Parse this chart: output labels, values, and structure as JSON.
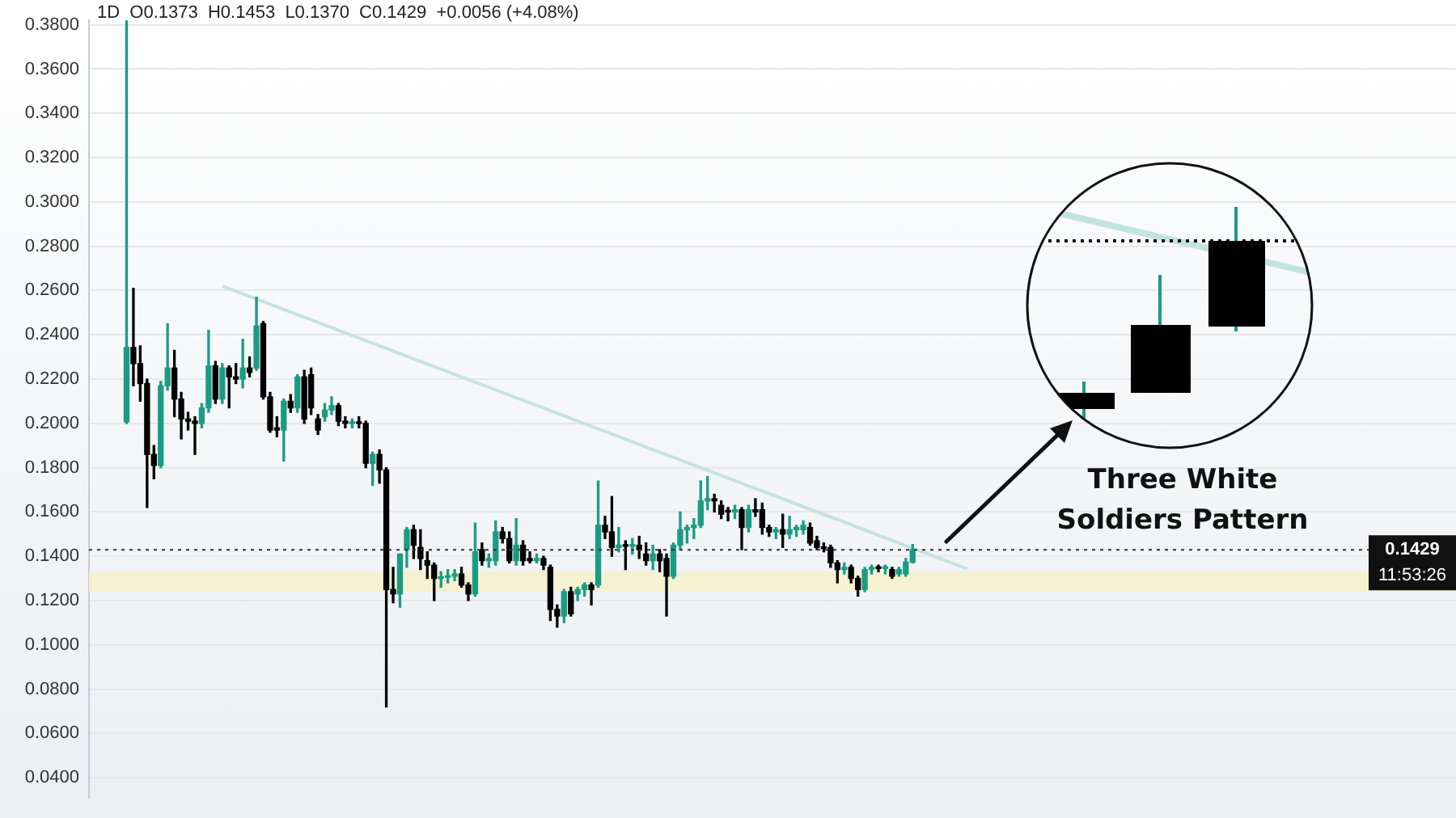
{
  "chart_data": {
    "type": "candlestick",
    "title": "1D  O0.1373  H0.1453  L0.1370  C0.1429  +0.0056 (+4.08%)",
    "categories": [
      null,
      null,
      null,
      null,
      null,
      null,
      null,
      null,
      null,
      null,
      null,
      null,
      null,
      null,
      null,
      null,
      null,
      null,
      null,
      null,
      null,
      null,
      null,
      null,
      null,
      null,
      null,
      null,
      null,
      null,
      null,
      null,
      null,
      null,
      null,
      null,
      null,
      null,
      null,
      null,
      null,
      null,
      null,
      null,
      null,
      null,
      null,
      null,
      null,
      null,
      null,
      null,
      null,
      null,
      null,
      null,
      null,
      null,
      null,
      null,
      null,
      null,
      null,
      null,
      null,
      null,
      null,
      null,
      null,
      null,
      null,
      null,
      null,
      null,
      null,
      null,
      null,
      null,
      null,
      null,
      null,
      null,
      null,
      null,
      null,
      null,
      null,
      null,
      null,
      null,
      null,
      null,
      null,
      null,
      null,
      null,
      null,
      null,
      null,
      null,
      null,
      null,
      null,
      null,
      null,
      null,
      null,
      null,
      null,
      null,
      null,
      null,
      null,
      null,
      null,
      null,
      null,
      null,
      null,
      null,
      null,
      null,
      null,
      null,
      null,
      null,
      null,
      null,
      null,
      null,
      null,
      null,
      null,
      null,
      null,
      null,
      null,
      null,
      null,
      null,
      null,
      null,
      null,
      null,
      null,
      null,
      null,
      null,
      null,
      null,
      null,
      null,
      null,
      null,
      null,
      null,
      null,
      null,
      null,
      null,
      null,
      null,
      null,
      null,
      null,
      null,
      null,
      null,
      null,
      null,
      null,
      null,
      null,
      null,
      null,
      null,
      null,
      null,
      null,
      null,
      null,
      null,
      null,
      null,
      null,
      null,
      null,
      null,
      null,
      null,
      null,
      null,
      null,
      null,
      null,
      null,
      null,
      null,
      null,
      null
    ],
    "ohlc": [
      null,
      null,
      null,
      null,
      null,
      [
        0.2007,
        0.382,
        0.2,
        0.2343
      ],
      [
        0.2343,
        0.261,
        0.217,
        0.227
      ],
      [
        0.227,
        0.235,
        0.21,
        0.218
      ],
      [
        0.218,
        0.22,
        0.162,
        0.186
      ],
      [
        0.186,
        0.19,
        0.175,
        0.181
      ],
      [
        0.181,
        0.219,
        0.18,
        0.217
      ],
      [
        0.217,
        0.245,
        0.215,
        0.225
      ],
      [
        0.225,
        0.233,
        0.203,
        0.211
      ],
      [
        0.211,
        0.214,
        0.193,
        0.202
      ],
      [
        0.202,
        0.205,
        0.197,
        0.201
      ],
      [
        0.201,
        0.203,
        0.186,
        0.2
      ],
      [
        0.2,
        0.209,
        0.198,
        0.207
      ],
      [
        0.207,
        0.242,
        0.205,
        0.226
      ],
      [
        0.226,
        0.228,
        0.209,
        0.211
      ],
      [
        0.211,
        0.227,
        0.209,
        0.225
      ],
      [
        0.225,
        0.226,
        0.207,
        0.221
      ],
      [
        0.221,
        0.227,
        0.218,
        0.22
      ],
      [
        0.22,
        0.238,
        0.216,
        0.225
      ],
      [
        0.225,
        0.23,
        0.221,
        0.223
      ],
      [
        0.225,
        0.257,
        0.224,
        0.244
      ],
      [
        0.245,
        0.246,
        0.211,
        0.212
      ],
      [
        0.212,
        0.214,
        0.196,
        0.197
      ],
      [
        0.198,
        0.203,
        0.194,
        0.197
      ],
      [
        0.197,
        0.211,
        0.183,
        0.21
      ],
      [
        0.21,
        0.213,
        0.205,
        0.207
      ],
      [
        0.207,
        0.222,
        0.205,
        0.221
      ],
      [
        0.221,
        0.224,
        0.2,
        0.202
      ],
      [
        0.222,
        0.225,
        0.204,
        0.207
      ],
      [
        0.202,
        0.204,
        0.195,
        0.197
      ],
      [
        0.203,
        0.209,
        0.201,
        0.206
      ],
      [
        0.206,
        0.212,
        0.204,
        0.208
      ],
      [
        0.208,
        0.209,
        0.199,
        0.201
      ],
      [
        0.201,
        0.203,
        0.198,
        0.2
      ],
      [
        0.2,
        0.202,
        0.198,
        0.2005
      ],
      [
        0.2005,
        0.203,
        0.198,
        0.2
      ],
      [
        0.2,
        0.201,
        0.18,
        0.182
      ],
      [
        0.182,
        0.187,
        0.172,
        0.186
      ],
      [
        0.186,
        0.188,
        0.173,
        0.179
      ],
      [
        0.179,
        0.18,
        0.072,
        0.125
      ],
      [
        0.125,
        0.135,
        0.119,
        0.123
      ],
      [
        0.123,
        0.141,
        0.117,
        0.141
      ],
      [
        0.143,
        0.153,
        0.135,
        0.152
      ],
      [
        0.152,
        0.154,
        0.139,
        0.145
      ],
      [
        0.144,
        0.152,
        0.134,
        0.139
      ],
      [
        0.138,
        0.142,
        0.13,
        0.136
      ],
      [
        0.136,
        0.137,
        0.12,
        0.13
      ],
      [
        0.13,
        0.133,
        0.126,
        0.1305
      ],
      [
        0.1305,
        0.134,
        0.128,
        0.131
      ],
      [
        0.131,
        0.134,
        0.129,
        0.132
      ],
      [
        0.132,
        0.135,
        0.126,
        0.127
      ],
      [
        0.127,
        0.128,
        0.12,
        0.123
      ],
      [
        0.123,
        0.155,
        0.122,
        0.142
      ],
      [
        0.143,
        0.146,
        0.136,
        0.138
      ],
      [
        0.138,
        0.141,
        0.135,
        0.139
      ],
      [
        0.138,
        0.156,
        0.136,
        0.151
      ],
      [
        0.151,
        0.153,
        0.146,
        0.148
      ],
      [
        0.148,
        0.151,
        0.137,
        0.138
      ],
      [
        0.138,
        0.157,
        0.136,
        0.145
      ],
      [
        0.145,
        0.147,
        0.136,
        0.138
      ],
      [
        0.139,
        0.142,
        0.137,
        0.138
      ],
      [
        0.138,
        0.141,
        0.137,
        0.139
      ],
      [
        0.139,
        0.14,
        0.134,
        0.136
      ],
      [
        0.135,
        0.136,
        0.111,
        0.116
      ],
      [
        0.116,
        0.118,
        0.108,
        0.113
      ],
      [
        0.113,
        0.125,
        0.11,
        0.124
      ],
      [
        0.124,
        0.126,
        0.113,
        0.114
      ],
      [
        0.123,
        0.126,
        0.12,
        0.125
      ],
      [
        0.125,
        0.128,
        0.122,
        0.127
      ],
      [
        0.127,
        0.128,
        0.118,
        0.125
      ],
      [
        0.127,
        0.174,
        0.126,
        0.154
      ],
      [
        0.154,
        0.158,
        0.148,
        0.151
      ],
      [
        0.151,
        0.167,
        0.14,
        0.144
      ],
      [
        0.144,
        0.153,
        0.142,
        0.145
      ],
      [
        0.145,
        0.147,
        0.134,
        0.1445
      ],
      [
        0.1445,
        0.148,
        0.141,
        0.145
      ],
      [
        0.145,
        0.149,
        0.139,
        0.143
      ],
      [
        0.141,
        0.146,
        0.136,
        0.138
      ],
      [
        0.138,
        0.145,
        0.134,
        0.141
      ],
      [
        0.141,
        0.143,
        0.133,
        0.138
      ],
      [
        0.139,
        0.141,
        0.113,
        0.131
      ],
      [
        0.131,
        0.146,
        0.13,
        0.145
      ],
      [
        0.145,
        0.16,
        0.143,
        0.152
      ],
      [
        0.152,
        0.154,
        0.146,
        0.153
      ],
      [
        0.153,
        0.157,
        0.148,
        0.154
      ],
      [
        0.154,
        0.174,
        0.153,
        0.165
      ],
      [
        0.165,
        0.176,
        0.161,
        0.166
      ],
      [
        0.166,
        0.168,
        0.16,
        0.165
      ],
      [
        0.163,
        0.165,
        0.157,
        0.159
      ],
      [
        0.16,
        0.162,
        0.156,
        0.16
      ],
      [
        0.16,
        0.163,
        0.157,
        0.161
      ],
      [
        0.161,
        0.162,
        0.143,
        0.153
      ],
      [
        0.153,
        0.163,
        0.151,
        0.161
      ],
      [
        0.161,
        0.166,
        0.158,
        0.16
      ],
      [
        0.161,
        0.164,
        0.15,
        0.153
      ],
      [
        0.153,
        0.154,
        0.149,
        0.151
      ],
      [
        0.151,
        0.153,
        0.148,
        0.152
      ],
      [
        0.152,
        0.159,
        0.144,
        0.15
      ],
      [
        0.15,
        0.158,
        0.148,
        0.152
      ],
      [
        0.152,
        0.154,
        0.149,
        0.153
      ],
      [
        0.152,
        0.156,
        0.15,
        0.154
      ],
      [
        0.153,
        0.155,
        0.145,
        0.146
      ],
      [
        0.147,
        0.149,
        0.143,
        0.144
      ],
      [
        0.144,
        0.146,
        0.142,
        0.1435
      ],
      [
        0.144,
        0.145,
        0.135,
        0.137
      ],
      [
        0.137,
        0.138,
        0.128,
        0.134
      ],
      [
        0.134,
        0.137,
        0.132,
        0.135
      ],
      [
        0.135,
        0.136,
        0.128,
        0.13
      ],
      [
        0.13,
        0.131,
        0.122,
        0.125
      ],
      [
        0.125,
        0.135,
        0.124,
        0.134
      ],
      [
        0.134,
        0.136,
        0.132,
        0.135
      ],
      [
        0.1345,
        0.136,
        0.133,
        0.1345
      ],
      [
        0.1345,
        0.136,
        0.132,
        0.135
      ],
      [
        0.134,
        0.135,
        0.13,
        0.131
      ],
      [
        0.132,
        0.135,
        0.131,
        0.134
      ],
      [
        0.132,
        0.139,
        0.131,
        0.1373
      ],
      [
        0.1373,
        0.1453,
        0.137,
        0.1429
      ],
      null,
      null,
      null,
      null,
      null,
      null,
      null,
      null,
      null,
      null,
      null,
      null,
      null,
      null,
      null,
      null,
      null,
      null,
      null,
      null,
      null,
      null,
      null,
      null,
      null,
      null,
      null,
      null,
      null,
      null,
      null,
      null,
      null,
      null,
      null,
      null,
      null,
      null,
      null,
      null,
      null,
      null,
      null,
      null,
      null,
      null,
      null,
      null,
      null,
      null,
      null,
      null,
      null,
      null,
      null,
      null,
      null,
      null,
      null,
      null,
      null,
      null,
      null,
      null,
      null,
      null,
      null,
      null,
      null,
      null,
      null,
      null,
      null,
      null,
      null,
      null,
      null,
      null,
      null
    ],
    "colors": [
      null,
      null,
      null,
      null,
      null,
      "#1a9c84",
      "#000000",
      "#000000",
      "#000000",
      "#000000",
      "#1a9c84",
      "#1a9c84",
      "#000000",
      "#000000",
      "#000000",
      "#000000",
      "#1a9c84",
      "#1a9c84",
      "#000000",
      "#1a9c84",
      "#000000",
      "#000000",
      "#1a9c84",
      "#000000",
      "#1a9c84",
      "#000000",
      "#000000",
      "#000000",
      "#1a9c84",
      "#000000",
      "#1a9c84",
      "#000000",
      "#000000",
      "#000000",
      "#1a9c84",
      "#1a9c84",
      "#000000",
      "#000000",
      "#1a9c84",
      "#000000",
      "#000000",
      "#1a9c84",
      "#000000",
      "#000000",
      "#000000",
      "#1a9c84",
      "#1a9c84",
      "#000000",
      "#000000",
      "#000000",
      "#000000",
      "#1a9c84",
      "#1a9c84",
      "#1a9c84",
      "#000000",
      "#000000",
      "#1a9c84",
      "#000000",
      "#1a9c84",
      "#1a9c84",
      "#000000",
      "#000000",
      "#1a9c84",
      "#000000",
      "#000000",
      "#1a9c84",
      "#000000",
      "#000000",
      "#000000",
      "#1a9c84",
      "#000000",
      "#1a9c84",
      "#1a9c84",
      "#000000",
      "#1a9c84",
      "#000000",
      "#000000",
      "#1a9c84",
      "#000000",
      "#1a9c84",
      "#000000",
      "#000000",
      "#1a9c84",
      "#000000",
      "#000000",
      "#1a9c84",
      "#1a9c84",
      "#1a9c84",
      "#1a9c84",
      "#1a9c84",
      "#1a9c84",
      "#000000",
      "#000000",
      "#000000",
      "#1a9c84",
      "#000000",
      "#1a9c84",
      "#000000",
      "#000000",
      "#000000",
      "#1a9c84",
      "#000000",
      "#1a9c84",
      "#1a9c84",
      "#1a9c84",
      "#000000",
      "#000000",
      "#000000",
      "#000000",
      "#000000",
      "#1a9c84",
      "#000000",
      "#000000",
      "#1a9c84",
      "#1a9c84",
      "#000000",
      "#1a9c84",
      "#000000",
      "#1a9c84",
      "#1a9c84",
      "#1a9c84",
      null,
      null,
      null,
      null,
      null,
      null,
      null,
      null,
      null,
      null,
      null,
      null,
      null,
      null,
      null,
      null,
      null,
      null,
      null,
      null,
      null,
      null,
      null,
      null,
      null,
      null,
      null,
      null,
      null,
      null,
      null,
      null,
      null,
      null,
      null,
      null,
      null,
      null,
      null,
      null,
      null,
      null,
      null,
      null,
      null,
      null,
      null,
      null,
      null,
      null,
      null,
      null,
      null,
      null,
      null,
      null,
      null,
      null,
      null,
      null,
      null,
      null,
      null,
      null,
      null,
      null,
      null,
      null,
      null,
      null,
      null,
      null,
      null,
      null,
      null,
      null,
      null,
      null,
      null
    ],
    "series": [
      {
        "type": "line",
        "color": "#c4e3df",
        "values": [
          null,
          null,
          null,
          null,
          null,
          null,
          null,
          null,
          null,
          null,
          null,
          null,
          null,
          null,
          null,
          null,
          null,
          null,
          null,
          0.262,
          null,
          null,
          null,
          null,
          null,
          null,
          null,
          null,
          null,
          null,
          null,
          null,
          null,
          null,
          null,
          null,
          null,
          null,
          null,
          null,
          null,
          null,
          null,
          null,
          null,
          null,
          null,
          null,
          null,
          null,
          null,
          null,
          null,
          null,
          null,
          null,
          null,
          null,
          null,
          null,
          null,
          null,
          null,
          null,
          null,
          null,
          null,
          null,
          null,
          null,
          null,
          null,
          null,
          null,
          null,
          null,
          null,
          null,
          null,
          null,
          null,
          null,
          null,
          null,
          null,
          null,
          null,
          null,
          null,
          null,
          null,
          null,
          null,
          null,
          null,
          null,
          null,
          null,
          null,
          null,
          null,
          null,
          null,
          null,
          null,
          null,
          null,
          null,
          null,
          null,
          null,
          null,
          null,
          null,
          null,
          null,
          null,
          null,
          null,
          null,
          null,
          null,
          null,
          null,
          null,
          null,
          null,
          null,
          0.1343,
          null,
          null,
          null,
          null,
          null,
          null,
          null,
          null,
          null,
          null,
          null,
          null,
          null,
          null,
          null,
          null,
          null,
          null,
          null,
          null,
          null,
          null,
          null,
          null,
          null,
          null,
          null,
          null,
          null,
          null,
          null,
          null,
          null,
          null,
          null,
          null,
          null,
          null,
          null,
          null,
          null,
          null,
          null,
          null,
          null,
          null,
          null,
          null,
          null,
          null,
          null,
          null,
          null,
          null,
          null,
          null,
          null,
          null,
          null,
          null,
          null,
          null,
          null,
          null,
          null,
          null,
          null,
          null,
          null,
          null,
          null
        ]
      }
    ],
    "ylim": [
      0.031,
      0.382
    ],
    "yticks": [
      {
        "value": 0.04,
        "label": "0.0400"
      },
      {
        "value": 0.06,
        "label": "0.0600"
      },
      {
        "value": 0.08,
        "label": "0.0800"
      },
      {
        "value": 0.1,
        "label": "0.1000"
      },
      {
        "value": 0.12,
        "label": "0.1200"
      },
      {
        "value": 0.14,
        "label": "0.1400"
      },
      {
        "value": 0.16,
        "label": "0.1600"
      },
      {
        "value": 0.18,
        "label": "0.1800"
      },
      {
        "value": 0.2,
        "label": "0.2000"
      },
      {
        "value": 0.22,
        "label": "0.2200"
      },
      {
        "value": 0.24,
        "label": "0.2400"
      },
      {
        "value": 0.26,
        "label": "0.2600"
      },
      {
        "value": 0.28,
        "label": "0.2800"
      },
      {
        "value": 0.3,
        "label": "0.3000"
      },
      {
        "value": 0.32,
        "label": "0.3200"
      },
      {
        "value": 0.34,
        "label": "0.3400"
      },
      {
        "value": 0.36,
        "label": "0.3600"
      },
      {
        "value": 0.38,
        "label": "0.3800"
      }
    ],
    "grid": "y",
    "ref_lines": [
      {
        "axis": "y",
        "value": 0.1429,
        "label": "0.1429",
        "line_style": "dotted",
        "color": "#333333"
      }
    ],
    "bands": [
      {
        "axis": "y",
        "from": 0.124,
        "to": 0.133,
        "color": "#f6f1d0"
      }
    ],
    "annotations": [
      "11:53:26",
      "Three White Soldiers Pattern"
    ]
  }
}
